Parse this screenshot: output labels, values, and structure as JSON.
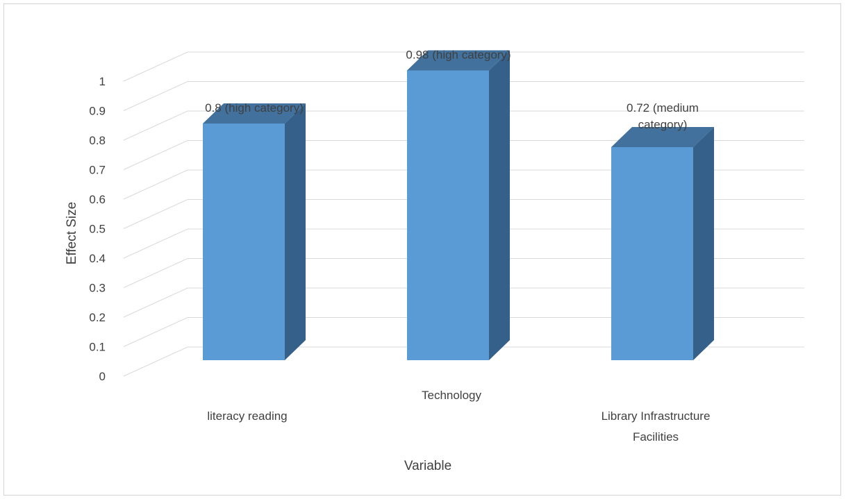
{
  "chart_data": {
    "type": "bar",
    "style": "3d-column",
    "categories": [
      "literacy reading",
      "Technology",
      "Library Infrastructure Facilities"
    ],
    "category_label_lines": [
      [
        "literacy reading"
      ],
      [
        "Technology"
      ],
      [
        "Library Infrastructure",
        "Facilities"
      ]
    ],
    "values": [
      0.8,
      0.98,
      0.72
    ],
    "data_labels": [
      [
        "0.8 (high category)"
      ],
      [
        "0.98 (high category)"
      ],
      [
        "0.72 (medium",
        "category)"
      ]
    ],
    "title": "",
    "xlabel": "Variable",
    "ylabel": "Effect Size",
    "ylim": [
      0,
      1.0
    ],
    "yticks": [
      "0",
      "0.1",
      "0.2",
      "0.3",
      "0.4",
      "0.5",
      "0.6",
      "0.7",
      "0.8",
      "0.9",
      "1"
    ],
    "grid": true,
    "legend": "none",
    "colors": {
      "bar_front": "#5b9bd5",
      "bar_side": "#35608a",
      "bar_top": "#41719c",
      "grid": "#d9d9d9",
      "text": "#404040"
    }
  }
}
